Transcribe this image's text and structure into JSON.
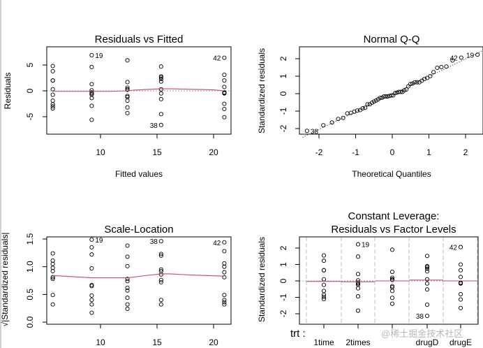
{
  "colors": {
    "points": "#000000",
    "smoother": "#c04a6e",
    "reference": "#aaaaaa",
    "grid": "#c8c8c8"
  },
  "watermark": "@稀土掘金技术社区",
  "chart_data": [
    {
      "type": "scatter",
      "title": "Residuals vs Fitted",
      "xlabel": "Fitted values",
      "ylabel": "Residuals",
      "xlim": [
        5.3,
        21.6
      ],
      "ylim": [
        -8.3,
        8.3
      ],
      "xticks": [
        10,
        15,
        20
      ],
      "yticks": [
        -5,
        0,
        5
      ],
      "fitted": [
        5.78,
        9.22,
        12.38,
        15.36,
        20.95
      ],
      "groups": [
        [
          4.8,
          3.8,
          2.0,
          2.0,
          0.3,
          -0.75,
          -1.9,
          -2.6,
          -3.0,
          -3.4
        ],
        [
          6.9,
          4.6,
          1.3,
          0.1,
          -0.3,
          -0.5,
          -0.7,
          -1.4,
          -2.9,
          -5.6
        ],
        [
          5.9,
          1.7,
          0.6,
          0.3,
          0.2,
          -1.0,
          -1.2,
          -1.9,
          -3.2,
          -4.3
        ],
        [
          4.7,
          2.8,
          2.6,
          2.3,
          1.8,
          0.3,
          -0.5,
          -1.6,
          -4.5,
          -6.6
        ],
        [
          6.4,
          3.1,
          2.0,
          0.75,
          -0.3,
          -0.4,
          -0.5,
          -2.5,
          -3.5,
          -5.1
        ]
      ],
      "smoother": {
        "x": [
          5.78,
          9.22,
          10.8,
          12.38,
          13.0,
          15.36,
          16.2,
          18.0,
          20.0,
          20.95
        ],
        "y": [
          -0.1,
          -0.1,
          -0.1,
          0.0,
          0.15,
          0.4,
          0.4,
          0.3,
          0.2,
          0.0
        ]
      },
      "reference_y": 0,
      "point_labels": [
        {
          "text": "19",
          "group": 1,
          "index": 0,
          "side": "right"
        },
        {
          "text": "42",
          "group": 4,
          "index": 0,
          "side": "left"
        },
        {
          "text": "38",
          "group": 3,
          "index": 9,
          "side": "left"
        }
      ]
    },
    {
      "type": "scatter",
      "title": "Normal Q-Q",
      "xlabel": "Theoretical Quantiles",
      "ylabel": "Standardized residuals",
      "xlim": [
        -2.45,
        2.5
      ],
      "ylim": [
        -2.35,
        2.65
      ],
      "xticks": [
        -2,
        -1,
        0,
        1,
        2
      ],
      "yticks": [
        -2,
        -1,
        0,
        1,
        2
      ],
      "standardized_residuals": [
        1.55,
        1.23,
        0.65,
        0.65,
        0.1,
        -0.24,
        -0.61,
        -0.84,
        -0.97,
        -1.1,
        2.23,
        1.48,
        0.42,
        0.03,
        -0.1,
        -0.16,
        -0.23,
        -0.45,
        -0.94,
        -1.81,
        1.9,
        0.55,
        0.19,
        0.1,
        0.06,
        -0.32,
        -0.39,
        -0.61,
        -1.03,
        -1.39,
        1.52,
        0.9,
        0.84,
        0.74,
        0.58,
        0.1,
        -0.16,
        -0.52,
        -1.45,
        -2.13,
        2.06,
        1.0,
        0.65,
        0.24,
        -0.1,
        -0.13,
        -0.16,
        -0.81,
        -1.13,
        -1.65
      ],
      "point_labels": [
        {
          "text": "38",
          "rank": 1,
          "side": "right"
        },
        {
          "text": "42",
          "rank": 49,
          "side": "left"
        },
        {
          "text": "19",
          "rank": 50,
          "side": "left"
        }
      ]
    },
    {
      "type": "scatter",
      "title": "Scale-Location",
      "xlabel": "",
      "ylabel": "√|Standardized residuals|",
      "xlim": [
        5.3,
        21.6
      ],
      "ylim": [
        -0.04,
        1.54
      ],
      "xticks": [
        10,
        15,
        20
      ],
      "yticks": [
        0.0,
        0.5,
        1.0,
        1.5
      ],
      "ytick_labels": [
        "0.0",
        "0.5",
        "1.0",
        "1.5"
      ],
      "fitted": [
        5.78,
        9.22,
        12.38,
        15.36,
        20.95
      ],
      "groups": [
        [
          1.24,
          1.11,
          0.81,
          0.81,
          0.32,
          0.49,
          0.78,
          0.92,
          0.98,
          1.05
        ],
        [
          1.49,
          1.22,
          0.65,
          0.17,
          0.32,
          0.4,
          0.48,
          0.67,
          0.97,
          1.35
        ],
        [
          1.38,
          0.74,
          0.44,
          0.32,
          0.24,
          0.57,
          0.62,
          0.78,
          1.01,
          1.18
        ],
        [
          1.23,
          0.95,
          0.92,
          0.86,
          0.76,
          0.32,
          0.4,
          0.72,
          1.2,
          1.46
        ],
        [
          1.44,
          1.0,
          0.81,
          0.49,
          0.32,
          0.36,
          0.4,
          0.9,
          1.06,
          1.28
        ]
      ],
      "smoother": {
        "x": [
          5.78,
          9.22,
          12.38,
          14.0,
          15.36,
          16.2,
          18.0,
          20.95
        ],
        "y": [
          0.84,
          0.8,
          0.8,
          0.84,
          0.87,
          0.87,
          0.85,
          0.83
        ]
      },
      "point_labels": [
        {
          "text": "19",
          "group": 1,
          "index": 0,
          "side": "right"
        },
        {
          "text": "38",
          "group": 3,
          "index": 9,
          "side": "left"
        },
        {
          "text": "42",
          "group": 4,
          "index": 0,
          "side": "left"
        }
      ]
    },
    {
      "type": "scatter",
      "title_lines": [
        "Constant Leverage:",
        "Residuals vs Factor Levels"
      ],
      "ylabel": "Standardized residuals",
      "factor_label": "trt :",
      "ylim": [
        -2.7,
        2.7
      ],
      "yticks": [
        -2,
        -1,
        0,
        1,
        2
      ],
      "levels": [
        "1time",
        "2times",
        "",
        "drugD",
        "drugE"
      ],
      "groups": [
        [
          1.55,
          1.23,
          0.65,
          0.65,
          0.1,
          -0.24,
          -0.61,
          -0.84,
          -0.97,
          -1.1
        ],
        [
          2.23,
          1.48,
          0.42,
          0.03,
          -0.1,
          -0.16,
          -0.23,
          -0.45,
          -0.94,
          -1.81
        ],
        [
          1.9,
          0.55,
          0.19,
          0.1,
          0.06,
          -0.32,
          -0.39,
          -0.61,
          -1.03,
          -1.39
        ],
        [
          1.52,
          0.9,
          0.84,
          0.74,
          0.58,
          0.1,
          -0.16,
          -0.52,
          -1.45,
          -2.13
        ],
        [
          2.06,
          1.0,
          0.65,
          0.24,
          -0.1,
          -0.13,
          -0.16,
          -0.81,
          -1.13,
          -1.65
        ]
      ],
      "smoother_levels": [
        -0.03,
        -0.05,
        0.0,
        0.05,
        0.0
      ],
      "point_labels": [
        {
          "text": "19",
          "group": 1,
          "index": 0,
          "side": "right"
        },
        {
          "text": "42",
          "group": 4,
          "index": 0,
          "side": "left"
        },
        {
          "text": "38",
          "group": 3,
          "index": 9,
          "side": "left"
        }
      ]
    }
  ]
}
